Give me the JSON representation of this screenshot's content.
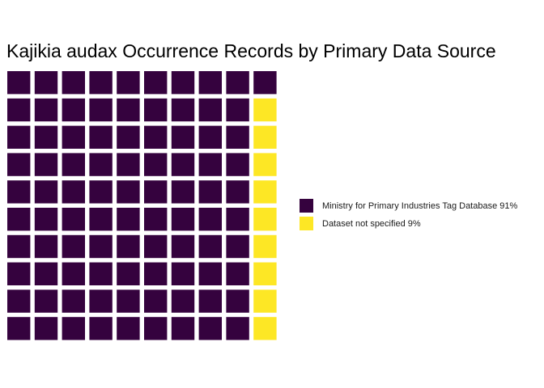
{
  "chart_data": {
    "type": "waffle",
    "title": "Kajikia audax Occurrence Records by Primary Data Source",
    "grid": {
      "rows": 10,
      "cols": 10,
      "unit": "percent"
    },
    "series": [
      {
        "name": "Ministry for Primary Industries Tag Database 91%",
        "value": 91,
        "color": "#35023E"
      },
      {
        "name": "Dataset not specified 9%",
        "value": 9,
        "color": "#FDE725"
      }
    ],
    "legend_position": "right"
  }
}
